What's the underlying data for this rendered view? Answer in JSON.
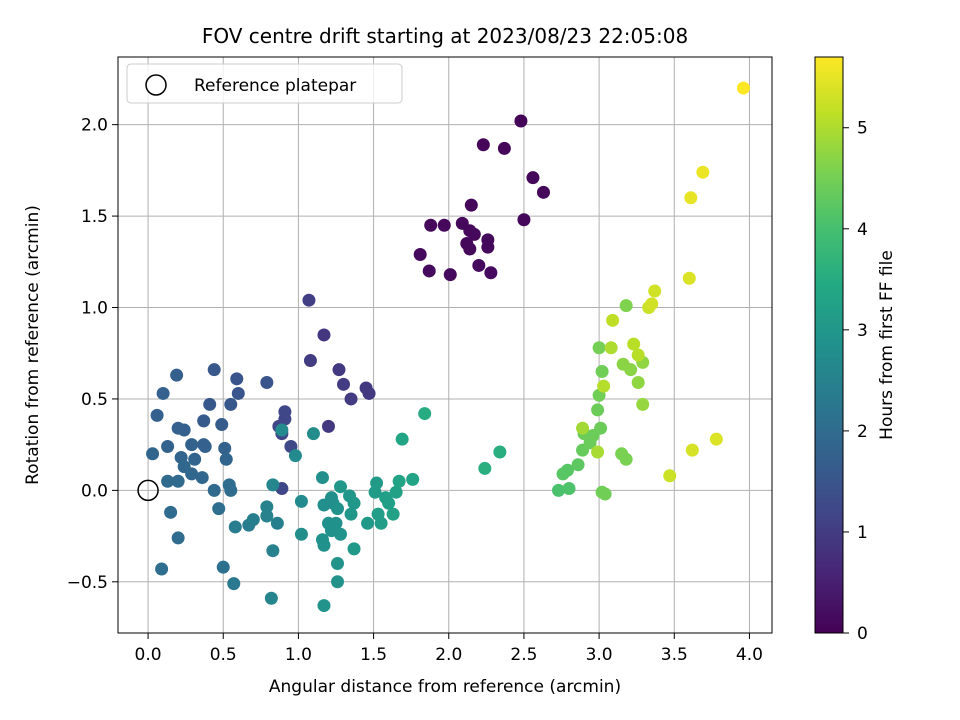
{
  "chart_data": {
    "type": "scatter",
    "title": "FOV centre drift starting at 2023/08/23 22:05:08",
    "xlabel": "Angular distance from reference (arcmin)",
    "ylabel": "Rotation from reference (arcmin)",
    "xlim": [
      -0.2,
      4.15
    ],
    "ylim": [
      -0.78,
      2.37
    ],
    "xticks": [
      0.0,
      0.5,
      1.0,
      1.5,
      2.0,
      2.5,
      3.0,
      3.5,
      4.0
    ],
    "xtick_labels": [
      "0.0",
      "0.5",
      "1.0",
      "1.5",
      "2.0",
      "2.5",
      "3.0",
      "3.5",
      "4.0"
    ],
    "yticks": [
      -0.5,
      0.0,
      0.5,
      1.0,
      1.5,
      2.0
    ],
    "ytick_labels": [
      "−0.5",
      "0.0",
      "0.5",
      "1.0",
      "1.5",
      "2.0"
    ],
    "grid": true,
    "legend": {
      "position": "upper-left",
      "entries": [
        {
          "label": "Reference platepar",
          "marker": "open-circle"
        }
      ]
    },
    "reference_point": {
      "x": 0.0,
      "y": 0.0
    },
    "colorbar": {
      "label": "Hours from first FF file",
      "colormap": "viridis",
      "range": [
        0,
        5.7
      ],
      "ticks": [
        0,
        1,
        2,
        3,
        4,
        5
      ],
      "tick_labels": [
        "0",
        "1",
        "2",
        "3",
        "4",
        "5"
      ]
    },
    "points": [
      {
        "x": 2.48,
        "y": 2.02,
        "c": 0.05
      },
      {
        "x": 2.23,
        "y": 1.89,
        "c": 0.08
      },
      {
        "x": 2.37,
        "y": 1.87,
        "c": 0.08
      },
      {
        "x": 2.56,
        "y": 1.71,
        "c": 0.1
      },
      {
        "x": 2.63,
        "y": 1.63,
        "c": 0.1
      },
      {
        "x": 2.15,
        "y": 1.56,
        "c": 0.1
      },
      {
        "x": 2.5,
        "y": 1.48,
        "c": 0.1
      },
      {
        "x": 2.09,
        "y": 1.46,
        "c": 0.12
      },
      {
        "x": 1.88,
        "y": 1.45,
        "c": 0.12
      },
      {
        "x": 1.97,
        "y": 1.45,
        "c": 0.12
      },
      {
        "x": 2.14,
        "y": 1.42,
        "c": 0.12
      },
      {
        "x": 2.17,
        "y": 1.4,
        "c": 0.12
      },
      {
        "x": 2.12,
        "y": 1.35,
        "c": 0.13
      },
      {
        "x": 2.26,
        "y": 1.37,
        "c": 0.13
      },
      {
        "x": 2.26,
        "y": 1.33,
        "c": 0.13
      },
      {
        "x": 2.14,
        "y": 1.32,
        "c": 0.13
      },
      {
        "x": 1.81,
        "y": 1.29,
        "c": 0.15
      },
      {
        "x": 2.2,
        "y": 1.23,
        "c": 0.15
      },
      {
        "x": 1.87,
        "y": 1.2,
        "c": 0.15
      },
      {
        "x": 2.01,
        "y": 1.18,
        "c": 0.15
      },
      {
        "x": 2.28,
        "y": 1.19,
        "c": 0.15
      },
      {
        "x": 1.07,
        "y": 1.04,
        "c": 1.05
      },
      {
        "x": 1.17,
        "y": 0.85,
        "c": 0.9
      },
      {
        "x": 1.08,
        "y": 0.71,
        "c": 1.0
      },
      {
        "x": 1.27,
        "y": 0.66,
        "c": 0.95
      },
      {
        "x": 1.3,
        "y": 0.58,
        "c": 1.0
      },
      {
        "x": 1.45,
        "y": 0.56,
        "c": 0.95
      },
      {
        "x": 1.47,
        "y": 0.53,
        "c": 0.95
      },
      {
        "x": 1.35,
        "y": 0.5,
        "c": 1.0
      },
      {
        "x": 1.2,
        "y": 0.35,
        "c": 0.95
      },
      {
        "x": 0.91,
        "y": 0.43,
        "c": 1.2
      },
      {
        "x": 0.91,
        "y": 0.39,
        "c": 1.2
      },
      {
        "x": 0.87,
        "y": 0.35,
        "c": 1.2
      },
      {
        "x": 0.89,
        "y": 0.31,
        "c": 1.2
      },
      {
        "x": 0.95,
        "y": 0.24,
        "c": 1.25
      },
      {
        "x": 0.89,
        "y": 0.01,
        "c": 1.2
      },
      {
        "x": 0.44,
        "y": 0.66,
        "c": 1.55
      },
      {
        "x": 0.59,
        "y": 0.61,
        "c": 1.5
      },
      {
        "x": 0.6,
        "y": 0.53,
        "c": 1.5
      },
      {
        "x": 0.55,
        "y": 0.47,
        "c": 1.55
      },
      {
        "x": 0.41,
        "y": 0.47,
        "c": 1.55
      },
      {
        "x": 0.19,
        "y": 0.63,
        "c": 1.7
      },
      {
        "x": 0.79,
        "y": 0.59,
        "c": 1.5
      },
      {
        "x": 0.1,
        "y": 0.53,
        "c": 1.75
      },
      {
        "x": 0.06,
        "y": 0.41,
        "c": 1.75
      },
      {
        "x": 0.37,
        "y": 0.38,
        "c": 1.6
      },
      {
        "x": 0.49,
        "y": 0.36,
        "c": 1.65
      },
      {
        "x": 0.2,
        "y": 0.34,
        "c": 1.75
      },
      {
        "x": 0.24,
        "y": 0.33,
        "c": 1.75
      },
      {
        "x": 0.13,
        "y": 0.24,
        "c": 1.8
      },
      {
        "x": 0.29,
        "y": 0.25,
        "c": 1.8
      },
      {
        "x": 0.37,
        "y": 0.25,
        "c": 1.75
      },
      {
        "x": 0.38,
        "y": 0.24,
        "c": 1.75
      },
      {
        "x": 0.51,
        "y": 0.23,
        "c": 1.8
      },
      {
        "x": 0.03,
        "y": 0.2,
        "c": 1.85
      },
      {
        "x": 0.22,
        "y": 0.18,
        "c": 1.85
      },
      {
        "x": 0.31,
        "y": 0.17,
        "c": 1.85
      },
      {
        "x": 0.52,
        "y": 0.17,
        "c": 1.85
      },
      {
        "x": 0.24,
        "y": 0.13,
        "c": 1.9
      },
      {
        "x": 0.29,
        "y": 0.09,
        "c": 1.9
      },
      {
        "x": 0.36,
        "y": 0.07,
        "c": 1.9
      },
      {
        "x": 0.13,
        "y": 0.05,
        "c": 1.95
      },
      {
        "x": 0.2,
        "y": 0.05,
        "c": 1.95
      },
      {
        "x": 0.44,
        "y": 0.0,
        "c": 1.95
      },
      {
        "x": 0.54,
        "y": 0.03,
        "c": 2.0
      },
      {
        "x": 0.55,
        "y": 0.0,
        "c": 2.0
      },
      {
        "x": 0.15,
        "y": -0.12,
        "c": 2.0
      },
      {
        "x": 0.47,
        "y": -0.1,
        "c": 2.05
      },
      {
        "x": 0.2,
        "y": -0.26,
        "c": 2.0
      },
      {
        "x": 0.09,
        "y": -0.43,
        "c": 2.05
      },
      {
        "x": 0.5,
        "y": -0.42,
        "c": 2.1
      },
      {
        "x": 0.57,
        "y": -0.51,
        "c": 2.3
      },
      {
        "x": 0.58,
        "y": -0.2,
        "c": 2.4
      },
      {
        "x": 0.67,
        "y": -0.19,
        "c": 2.4
      },
      {
        "x": 0.7,
        "y": -0.16,
        "c": 2.45
      },
      {
        "x": 0.79,
        "y": -0.14,
        "c": 2.5
      },
      {
        "x": 0.79,
        "y": -0.09,
        "c": 2.5
      },
      {
        "x": 0.86,
        "y": -0.18,
        "c": 2.45
      },
      {
        "x": 0.83,
        "y": -0.33,
        "c": 2.5
      },
      {
        "x": 0.82,
        "y": -0.59,
        "c": 2.55
      },
      {
        "x": 0.83,
        "y": 0.03,
        "c": 2.6
      },
      {
        "x": 0.89,
        "y": 0.33,
        "c": 2.7
      },
      {
        "x": 0.98,
        "y": 0.19,
        "c": 2.7
      },
      {
        "x": 1.1,
        "y": 0.31,
        "c": 2.75
      },
      {
        "x": 1.02,
        "y": -0.06,
        "c": 2.7
      },
      {
        "x": 1.02,
        "y": -0.24,
        "c": 2.75
      },
      {
        "x": 1.16,
        "y": 0.07,
        "c": 2.8
      },
      {
        "x": 1.17,
        "y": -0.08,
        "c": 2.8
      },
      {
        "x": 1.22,
        "y": -0.04,
        "c": 2.8
      },
      {
        "x": 1.23,
        "y": -0.07,
        "c": 2.8
      },
      {
        "x": 1.26,
        "y": -0.1,
        "c": 2.85
      },
      {
        "x": 1.2,
        "y": -0.18,
        "c": 2.85
      },
      {
        "x": 1.25,
        "y": -0.18,
        "c": 2.85
      },
      {
        "x": 1.16,
        "y": -0.27,
        "c": 2.85
      },
      {
        "x": 1.17,
        "y": -0.3,
        "c": 2.85
      },
      {
        "x": 1.22,
        "y": -0.22,
        "c": 2.85
      },
      {
        "x": 1.28,
        "y": -0.24,
        "c": 2.9
      },
      {
        "x": 1.26,
        "y": -0.4,
        "c": 2.9
      },
      {
        "x": 1.26,
        "y": -0.5,
        "c": 2.9
      },
      {
        "x": 1.17,
        "y": -0.63,
        "c": 2.9
      },
      {
        "x": 1.28,
        "y": 0.02,
        "c": 3.0
      },
      {
        "x": 1.34,
        "y": -0.03,
        "c": 3.0
      },
      {
        "x": 1.37,
        "y": -0.07,
        "c": 3.0
      },
      {
        "x": 1.35,
        "y": -0.13,
        "c": 3.0
      },
      {
        "x": 1.37,
        "y": -0.32,
        "c": 3.05
      },
      {
        "x": 1.46,
        "y": -0.18,
        "c": 3.05
      },
      {
        "x": 1.51,
        "y": -0.01,
        "c": 3.1
      },
      {
        "x": 1.52,
        "y": 0.04,
        "c": 3.1
      },
      {
        "x": 1.53,
        "y": -0.13,
        "c": 3.15
      },
      {
        "x": 1.55,
        "y": -0.18,
        "c": 3.15
      },
      {
        "x": 1.58,
        "y": -0.04,
        "c": 3.2
      },
      {
        "x": 1.6,
        "y": -0.07,
        "c": 3.2
      },
      {
        "x": 1.63,
        "y": -0.13,
        "c": 3.25
      },
      {
        "x": 1.65,
        "y": -0.01,
        "c": 3.25
      },
      {
        "x": 1.67,
        "y": 0.05,
        "c": 3.3
      },
      {
        "x": 1.76,
        "y": 0.06,
        "c": 3.3
      },
      {
        "x": 1.69,
        "y": 0.28,
        "c": 3.35
      },
      {
        "x": 1.84,
        "y": 0.42,
        "c": 3.5
      },
      {
        "x": 2.24,
        "y": 0.12,
        "c": 3.55
      },
      {
        "x": 2.34,
        "y": 0.21,
        "c": 3.55
      },
      {
        "x": 2.73,
        "y": 0.0,
        "c": 4.05
      },
      {
        "x": 2.8,
        "y": 0.01,
        "c": 4.1
      },
      {
        "x": 2.76,
        "y": 0.09,
        "c": 4.2
      },
      {
        "x": 2.79,
        "y": 0.11,
        "c": 4.2
      },
      {
        "x": 2.86,
        "y": 0.14,
        "c": 4.25
      },
      {
        "x": 2.89,
        "y": 0.22,
        "c": 4.35
      },
      {
        "x": 2.9,
        "y": 0.31,
        "c": 4.4
      },
      {
        "x": 2.94,
        "y": 0.26,
        "c": 4.4
      },
      {
        "x": 2.96,
        "y": 0.3,
        "c": 4.4
      },
      {
        "x": 3.01,
        "y": 0.34,
        "c": 4.4
      },
      {
        "x": 2.99,
        "y": 0.44,
        "c": 4.4
      },
      {
        "x": 3.0,
        "y": 0.52,
        "c": 4.45
      },
      {
        "x": 3.02,
        "y": 0.65,
        "c": 4.45
      },
      {
        "x": 3.0,
        "y": 0.78,
        "c": 4.5
      },
      {
        "x": 3.02,
        "y": -0.01,
        "c": 4.45
      },
      {
        "x": 3.04,
        "y": -0.02,
        "c": 4.45
      },
      {
        "x": 3.15,
        "y": 0.2,
        "c": 4.55
      },
      {
        "x": 3.18,
        "y": 0.17,
        "c": 4.55
      },
      {
        "x": 3.18,
        "y": 1.01,
        "c": 4.6
      },
      {
        "x": 3.16,
        "y": 0.69,
        "c": 4.7
      },
      {
        "x": 3.21,
        "y": 0.66,
        "c": 4.7
      },
      {
        "x": 3.29,
        "y": 0.7,
        "c": 4.75
      },
      {
        "x": 3.26,
        "y": 0.59,
        "c": 4.75
      },
      {
        "x": 3.29,
        "y": 0.47,
        "c": 4.8
      },
      {
        "x": 2.89,
        "y": 0.34,
        "c": 4.9
      },
      {
        "x": 2.99,
        "y": 0.21,
        "c": 4.95
      },
      {
        "x": 3.03,
        "y": 0.57,
        "c": 5.05
      },
      {
        "x": 3.08,
        "y": 0.78,
        "c": 5.0
      },
      {
        "x": 3.09,
        "y": 0.93,
        "c": 5.15
      },
      {
        "x": 3.23,
        "y": 0.8,
        "c": 5.1
      },
      {
        "x": 3.26,
        "y": 0.74,
        "c": 5.1
      },
      {
        "x": 3.33,
        "y": 1.0,
        "c": 5.25
      },
      {
        "x": 3.35,
        "y": 1.02,
        "c": 5.3
      },
      {
        "x": 3.37,
        "y": 1.09,
        "c": 5.3
      },
      {
        "x": 3.47,
        "y": 0.08,
        "c": 5.25
      },
      {
        "x": 3.6,
        "y": 1.16,
        "c": 5.4
      },
      {
        "x": 3.62,
        "y": 0.22,
        "c": 5.35
      },
      {
        "x": 3.61,
        "y": 1.6,
        "c": 5.5
      },
      {
        "x": 3.69,
        "y": 1.74,
        "c": 5.55
      },
      {
        "x": 3.78,
        "y": 0.28,
        "c": 5.4
      },
      {
        "x": 3.96,
        "y": 2.2,
        "c": 5.7
      }
    ]
  }
}
